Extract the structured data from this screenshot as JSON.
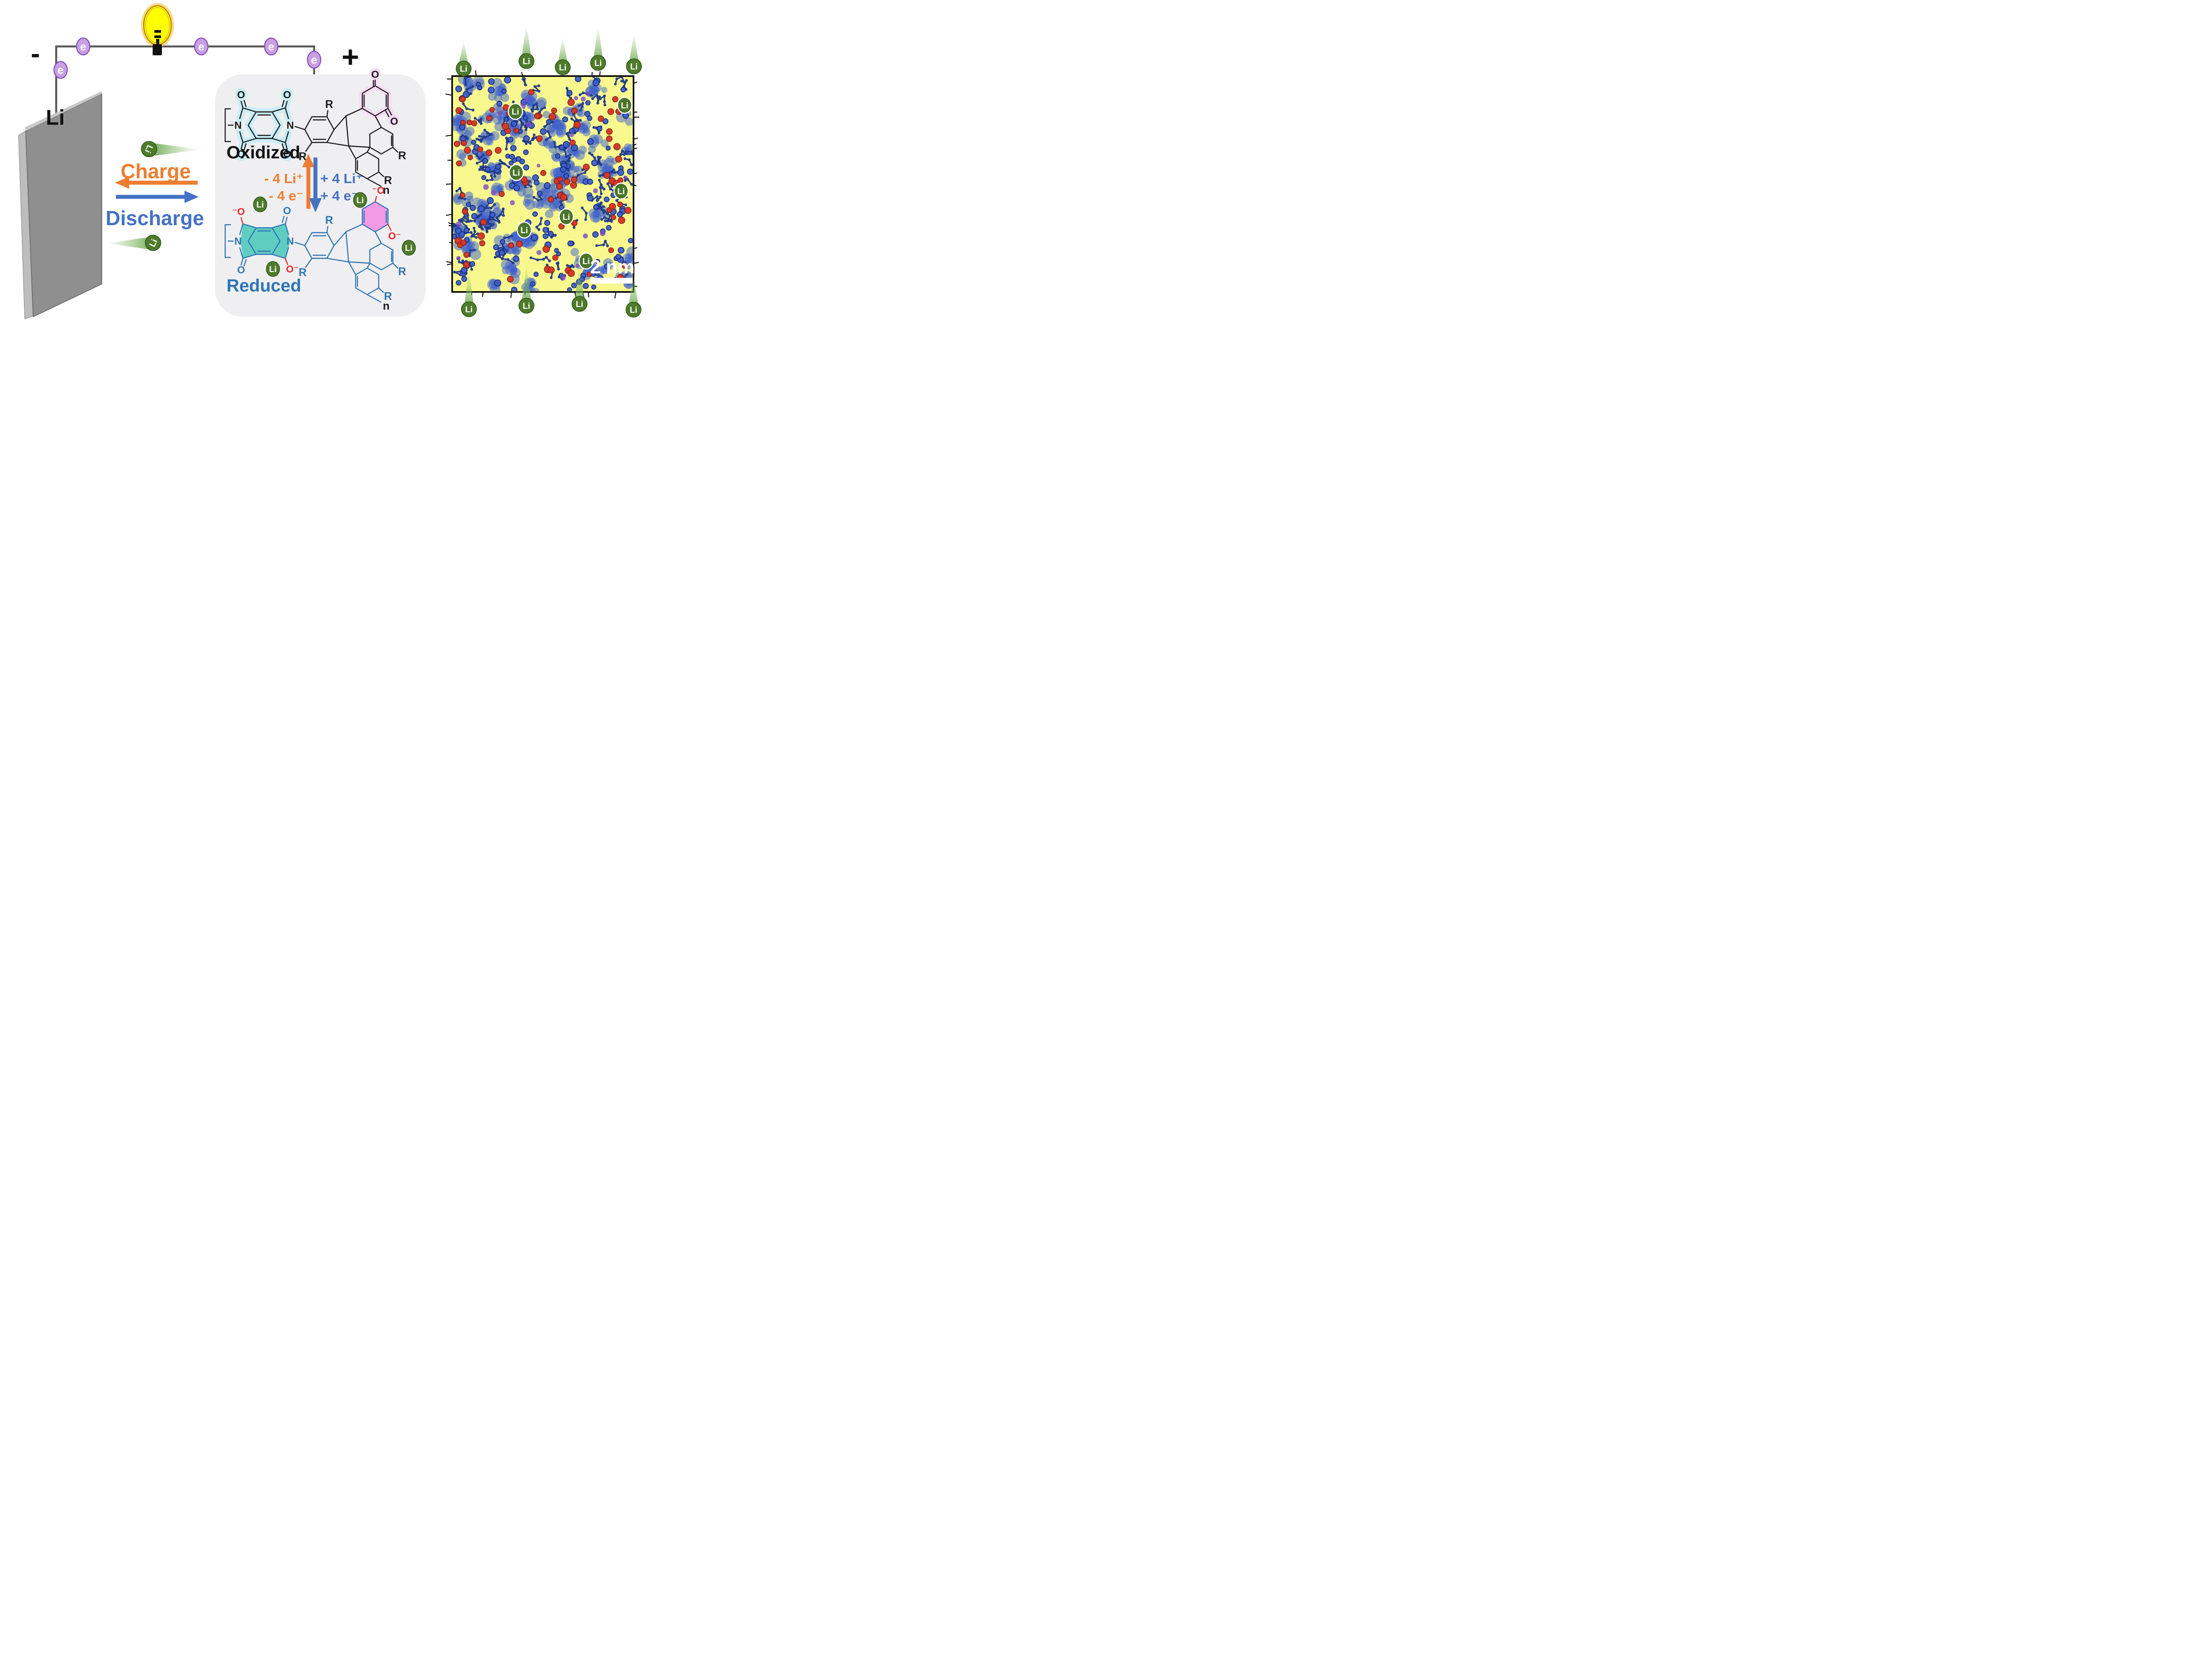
{
  "left_circuit": {
    "minus_label": "-",
    "plus_label": "+",
    "electron_label": "e",
    "electrode_label": "Li",
    "wire_color": "#595959",
    "electron_fill": "#C9A0E2",
    "electron_border": "#8B52BB",
    "bulb_fill": "#FFFF00",
    "bulb_glow": "#F6D06B"
  },
  "cycle": {
    "charge_label": "Charge",
    "discharge_label": "Discharge",
    "ion_label": "Li",
    "charge_color": "#ED7D31",
    "discharge_color": "#4472C4",
    "ion_color": "#4E7C2A"
  },
  "reaction_panel": {
    "oxidized_label": "Oxidized",
    "reduced_label": "Reduced",
    "charge_loss": [
      "- 4 Li⁺",
      "- 4 e⁻"
    ],
    "discharge_gain": [
      "+ 4 Li⁺",
      "+ 4 e⁻"
    ],
    "ion_label": "Li",
    "atom_labels": {
      "nitrogen": "N",
      "oxygen": "O",
      "r_group": "R",
      "repeat_unit": "n",
      "oxide_left": "⁻O",
      "oxide_right": "O⁻"
    },
    "highlight_colors": {
      "oxidized_diimide": "#C9EDF7",
      "oxidized_quinone": "#F8DCF5",
      "reduced_diimide": "#54CABD",
      "reduced_quinone": "#F29AE3"
    }
  },
  "simulation_panel": {
    "scale_label": "2 nm",
    "ion_label": "Li",
    "matrix_colors": {
      "background": "#F8F88E",
      "polymer": "#3B5BD0",
      "oxygen": "#D62020"
    }
  }
}
